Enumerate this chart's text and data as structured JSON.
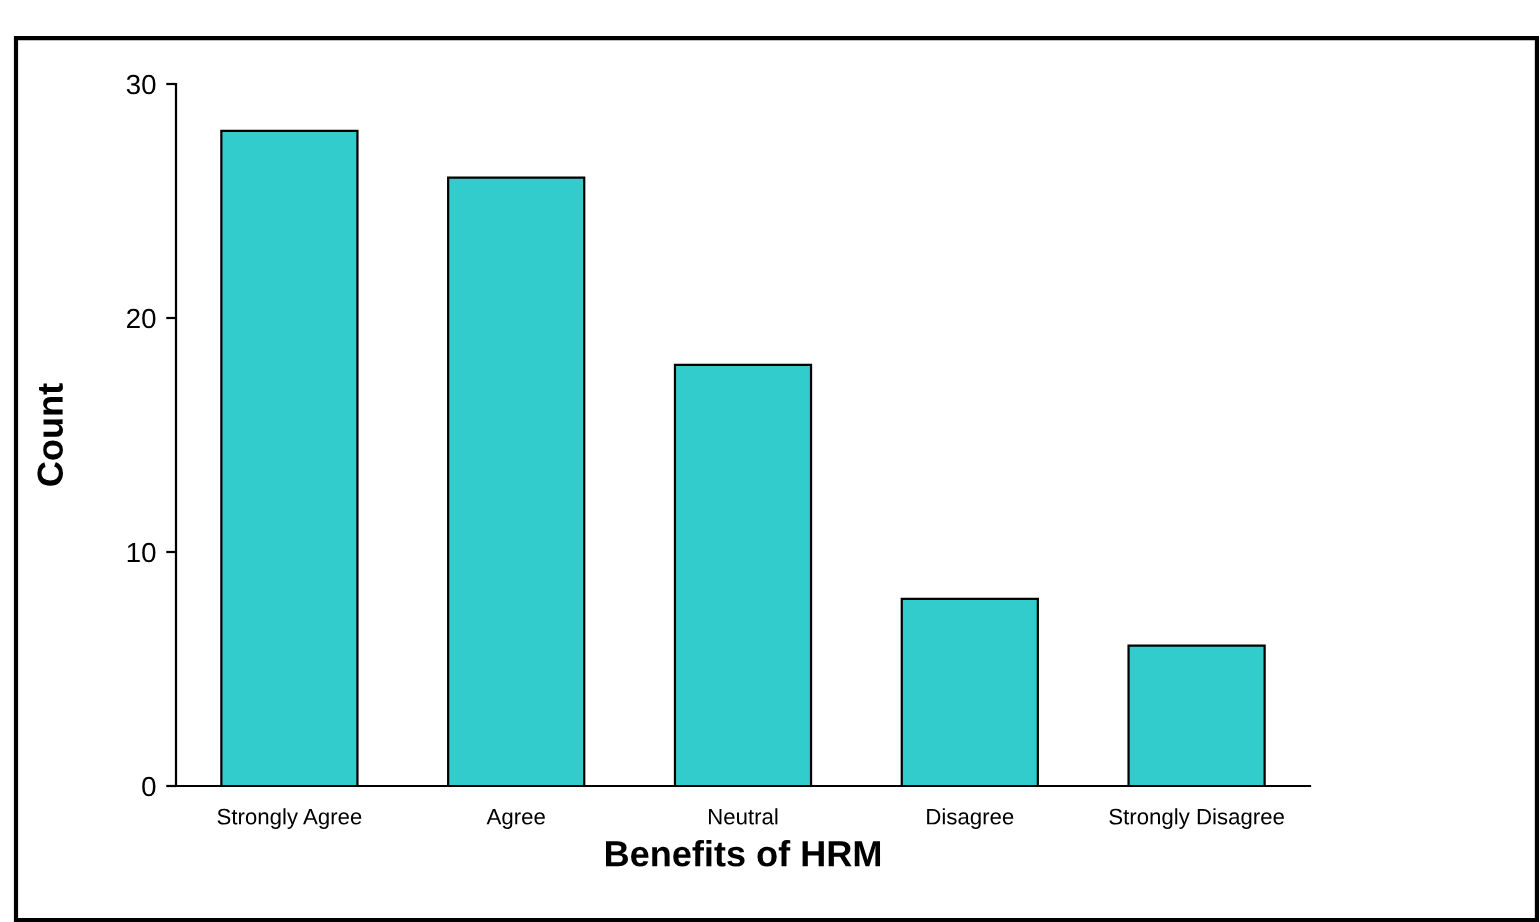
{
  "chart_data": {
    "type": "bar",
    "xlabel": "Benefits of HRM",
    "ylabel": "Count",
    "categories": [
      "Strongly Agree",
      "Agree",
      "Neutral",
      "Disagree",
      "Strongly Disagree"
    ],
    "values": [
      28,
      26,
      18,
      8,
      6
    ],
    "color": "#33cccc",
    "ylim": [
      0,
      30
    ],
    "yticks": [
      0,
      10,
      20,
      30
    ],
    "grid": false
  }
}
